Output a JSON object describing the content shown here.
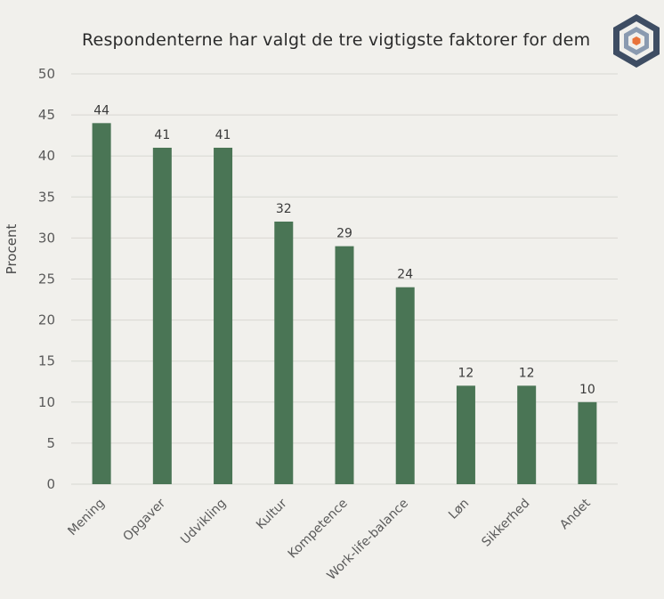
{
  "chart_data": {
    "type": "bar",
    "title": "Respondenterne har valgt de tre vigtigste faktorer for dem",
    "xlabel": "",
    "ylabel": "Procent",
    "categories": [
      "Mening",
      "Opgaver",
      "Udvikling",
      "Kultur",
      "Kompetence",
      "Work-life-balance",
      "Løn",
      "Sikkerhed",
      "Andet"
    ],
    "values": [
      44,
      41,
      41,
      32,
      29,
      24,
      12,
      12,
      10
    ],
    "ylim": [
      0,
      50
    ],
    "yticks": [
      0,
      5,
      10,
      15,
      20,
      25,
      30,
      35,
      40,
      45,
      50
    ],
    "grid": true,
    "bar_color": "#4a7555",
    "grid_color": "#d8d7d2",
    "logo_icon": "hexagon-cube-logo-icon",
    "logo_colors": {
      "outer": "#3e4d63",
      "inner": "#8a9ab0",
      "accent": "#e8733a"
    }
  }
}
